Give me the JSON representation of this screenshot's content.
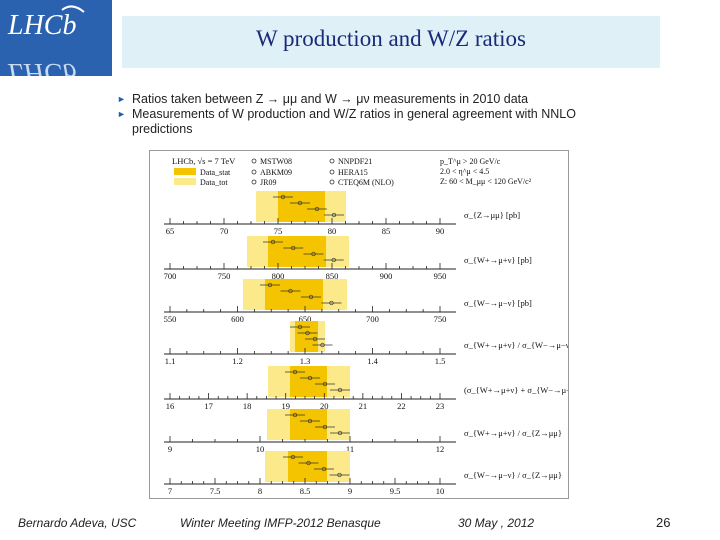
{
  "logo": {
    "text": "LHCb"
  },
  "title": "W production  and  W/Z ratios",
  "bullets": [
    "Ratios taken between Z → μμ and W → μν measurements in 2010 data",
    "Measurements of W production and W/Z ratios in general agreement with NNLO predictions"
  ],
  "figure": {
    "header_label": "LHCb, √s = 7 TeV",
    "legend": {
      "data_stat": "Data_stat",
      "data_tot": "Data_tot",
      "theories": [
        "MSTW08",
        "ABKM09",
        "JR09",
        "NNPDF21",
        "HERA15",
        "CTEQ6M (NLO)"
      ]
    },
    "cuts": [
      "p_T^μ > 20 GeV/c",
      "2.0 < η^μ < 4.5",
      "Z: 60 < M_μμ < 120 GeV/c²"
    ],
    "panels": [
      {
        "label": "σ_{Z→μμ} [pb]",
        "ticks": [
          "65",
          "70",
          "75",
          "80",
          "85",
          "90"
        ]
      },
      {
        "label": "σ_{W+→μ+ν} [pb]",
        "ticks": [
          "700",
          "750",
          "800",
          "850",
          "900",
          "950"
        ]
      },
      {
        "label": "σ_{W−→μ−ν} [pb]",
        "ticks": [
          "550",
          "600",
          "650",
          "700",
          "750"
        ]
      },
      {
        "label": "σ_{W+→μ+ν} / σ_{W−→μ−ν}",
        "ticks": [
          "1.1",
          "1.2",
          "1.3",
          "1.4",
          "1.5"
        ]
      },
      {
        "label": "(σ_{W+→μ+ν} + σ_{W−→μ−ν}) / σ_{Z→μμ}",
        "ticks": [
          "16",
          "17",
          "18",
          "19",
          "20",
          "21",
          "22",
          "23"
        ]
      },
      {
        "label": "σ_{W+→μ+ν} / σ_{Z→μμ}",
        "ticks": [
          "9",
          "10",
          "11",
          "12"
        ]
      },
      {
        "label": "σ_{W−→μ−ν} / σ_{Z→μμ}",
        "ticks": [
          "7",
          "7.5",
          "8",
          "8.5",
          "9",
          "9.5",
          "10"
        ]
      }
    ]
  },
  "footer": {
    "author": "Bernardo Adeva, USC",
    "event": "Winter Meeting IMFP-2012  Benasque",
    "date": "30 May , 2012",
    "page": "26"
  }
}
